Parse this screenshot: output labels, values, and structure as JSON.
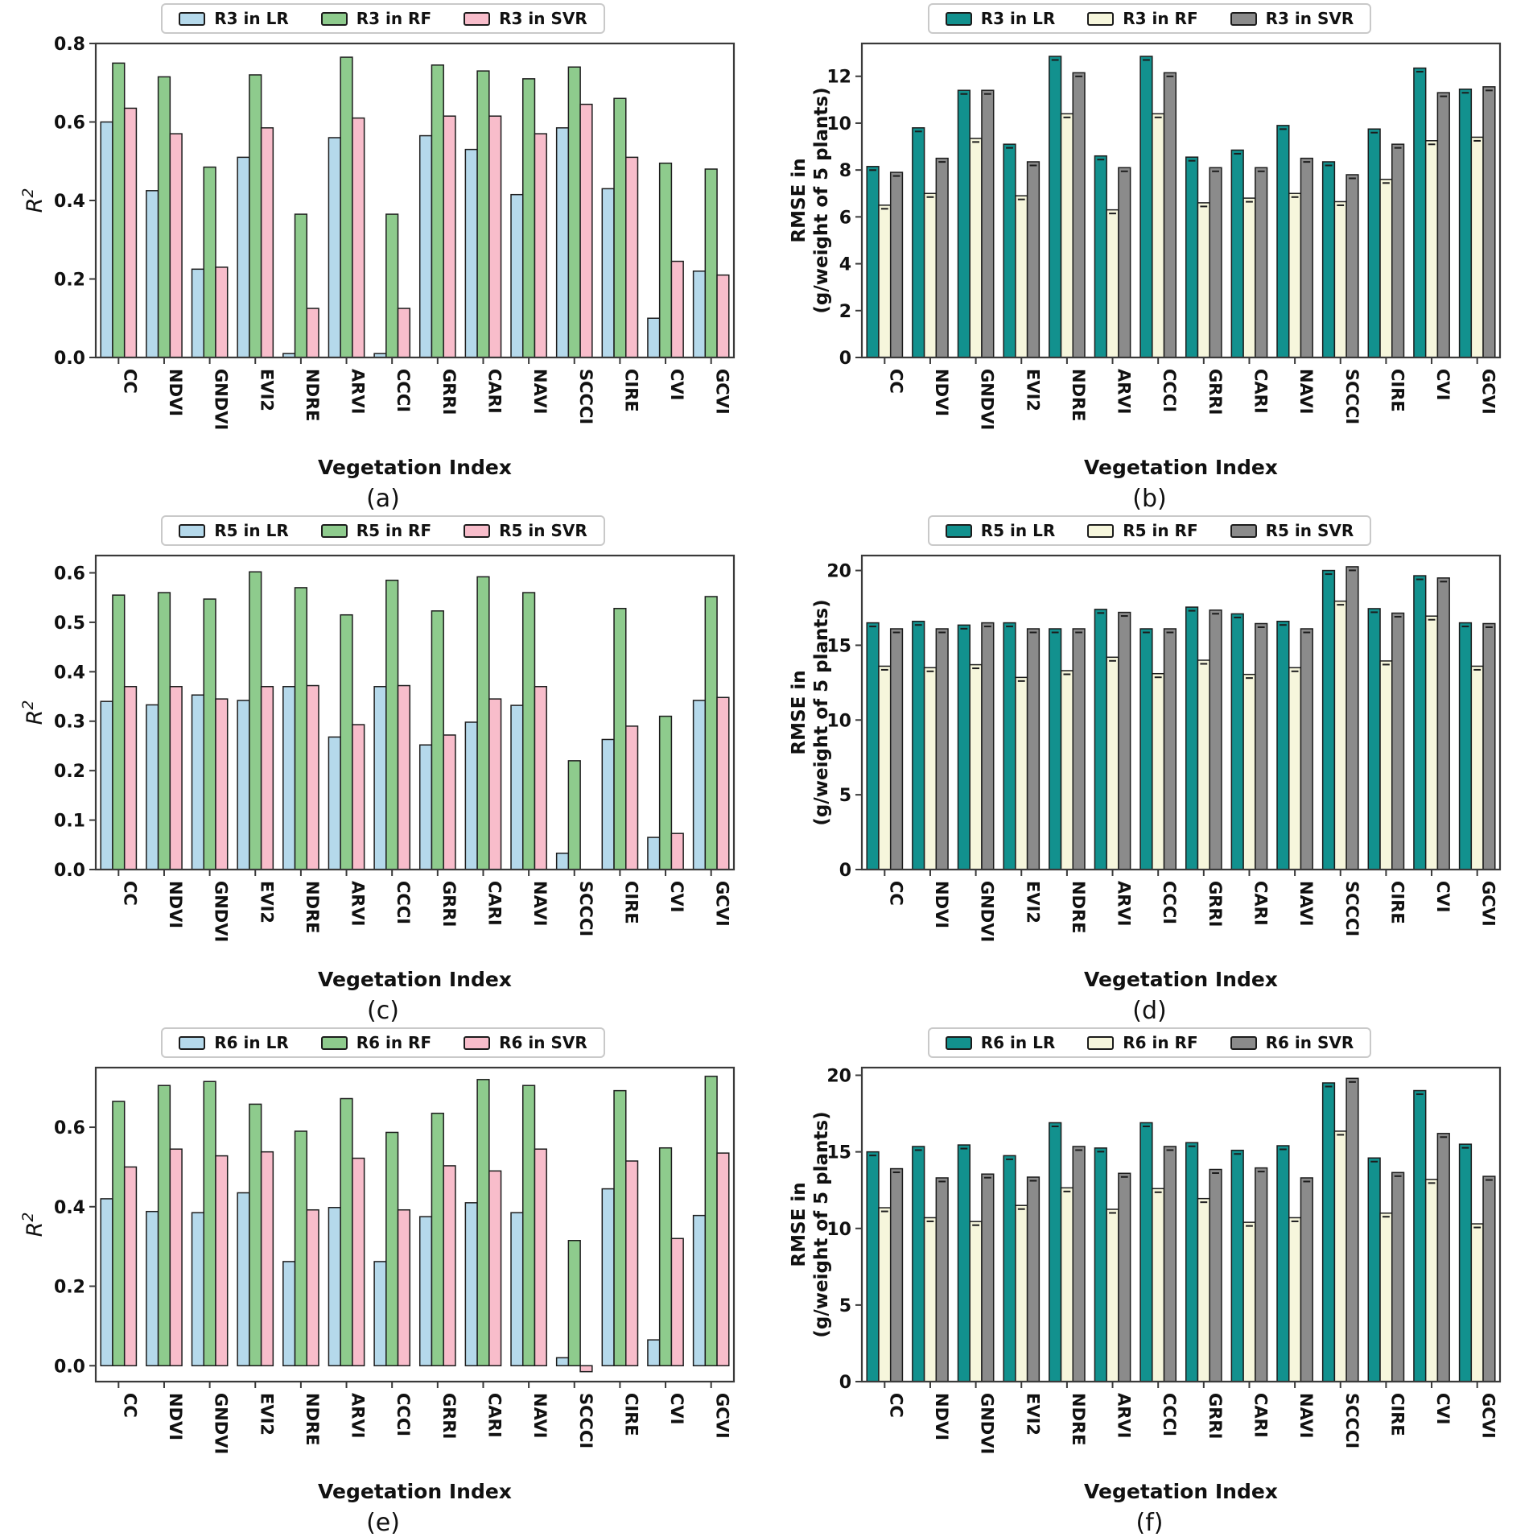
{
  "figure": {
    "xlabel": "Vegetation Index",
    "categories": [
      "CC",
      "NDVI",
      "GNDVI",
      "EVI2",
      "NDRE",
      "ARVI",
      "CCCI",
      "GRRI",
      "CARI",
      "NAVI",
      "SCCCI",
      "CIRE",
      "CVI",
      "GCVI"
    ],
    "r2_ylabel": {
      "base": "R",
      "sup": "2"
    },
    "rmse_ylabel_lines": [
      "RMSE in",
      "(g/weight of 5 plants)"
    ]
  },
  "colors": {
    "edge": "#1c1c1c",
    "spine": "#3a3a3a",
    "r2": {
      "lr": "#b5d9eb",
      "rf": "#8ecb8d",
      "svr": "#f8bdcb"
    },
    "rmse": {
      "lr": "#12918e",
      "rf": "#f6f6dc",
      "svr": "#8b8b8b"
    }
  },
  "chart_data": [
    {
      "id": "a",
      "caption": "(a)",
      "type": "bar",
      "kind": "r2",
      "title": "",
      "xlabel": "Vegetation Index",
      "ylabel": "R2",
      "ylim": [
        0,
        0.8
      ],
      "yticks": {
        "values": [
          0.0,
          0.2,
          0.4,
          0.6,
          0.8
        ],
        "labels": [
          "0.0",
          "0.2",
          "0.4",
          "0.6",
          "0.8"
        ]
      },
      "legend_position": "top",
      "categories": [
        "CC",
        "NDVI",
        "GNDVI",
        "EVI2",
        "NDRE",
        "ARVI",
        "CCCI",
        "GRRI",
        "CARI",
        "NAVI",
        "SCCCI",
        "CIRE",
        "CVI",
        "GCVI"
      ],
      "series": [
        {
          "name": "R3 in LR",
          "key": "lr",
          "values": [
            0.6,
            0.425,
            0.225,
            0.51,
            0.01,
            0.56,
            0.01,
            0.565,
            0.53,
            0.415,
            0.585,
            0.43,
            0.1,
            0.22
          ]
        },
        {
          "name": "R3 in RF",
          "key": "rf",
          "values": [
            0.75,
            0.715,
            0.485,
            0.72,
            0.365,
            0.765,
            0.365,
            0.745,
            0.73,
            0.71,
            0.74,
            0.66,
            0.495,
            0.48
          ]
        },
        {
          "name": "R3 in SVR",
          "key": "svr",
          "values": [
            0.635,
            0.57,
            0.23,
            0.585,
            0.125,
            0.61,
            0.125,
            0.615,
            0.615,
            0.57,
            0.645,
            0.51,
            0.245,
            0.21
          ]
        }
      ]
    },
    {
      "id": "b",
      "caption": "(b)",
      "type": "bar",
      "kind": "rmse",
      "title": "",
      "xlabel": "Vegetation Index",
      "ylabel": "RMSE in (g/weight of 5 plants)",
      "ylim": [
        0,
        13.4
      ],
      "yticks": {
        "values": [
          0,
          2,
          4,
          6,
          8,
          10,
          12
        ],
        "labels": [
          "0",
          "2",
          "4",
          "6",
          "8",
          "10",
          "12"
        ]
      },
      "legend_position": "top",
      "categories": [
        "CC",
        "NDVI",
        "GNDVI",
        "EVI2",
        "NDRE",
        "ARVI",
        "CCCI",
        "GRRI",
        "CARI",
        "NAVI",
        "SCCCI",
        "CIRE",
        "CVI",
        "GCVI"
      ],
      "series": [
        {
          "name": "R3 in LR",
          "key": "lr",
          "values": [
            8.15,
            9.8,
            11.4,
            9.1,
            12.85,
            8.6,
            12.85,
            8.55,
            8.85,
            9.9,
            8.35,
            9.75,
            12.35,
            11.45
          ]
        },
        {
          "name": "R3 in RF",
          "key": "rf",
          "values": [
            6.5,
            7.0,
            9.35,
            6.9,
            10.4,
            6.3,
            10.4,
            6.6,
            6.8,
            7.0,
            6.65,
            7.6,
            9.25,
            9.4
          ]
        },
        {
          "name": "R3 in SVR",
          "key": "svr",
          "values": [
            7.9,
            8.5,
            11.4,
            8.35,
            12.15,
            8.1,
            12.15,
            8.1,
            8.1,
            8.5,
            7.8,
            9.1,
            11.3,
            11.55
          ]
        }
      ]
    },
    {
      "id": "c",
      "caption": "(c)",
      "type": "bar",
      "kind": "r2",
      "title": "",
      "xlabel": "Vegetation Index",
      "ylabel": "R2",
      "ylim": [
        0,
        0.635
      ],
      "yticks": {
        "values": [
          0.0,
          0.1,
          0.2,
          0.3,
          0.4,
          0.5,
          0.6
        ],
        "labels": [
          "0.0",
          "0.1",
          "0.2",
          "0.3",
          "0.4",
          "0.5",
          "0.6"
        ]
      },
      "legend_position": "top",
      "categories": [
        "CC",
        "NDVI",
        "GNDVI",
        "EVI2",
        "NDRE",
        "ARVI",
        "CCCI",
        "GRRI",
        "CARI",
        "NAVI",
        "SCCCI",
        "CIRE",
        "CVI",
        "GCVI"
      ],
      "series": [
        {
          "name": "R5 in LR",
          "key": "lr",
          "values": [
            0.34,
            0.333,
            0.353,
            0.342,
            0.37,
            0.268,
            0.37,
            0.252,
            0.298,
            0.332,
            0.033,
            0.263,
            0.065,
            0.342
          ]
        },
        {
          "name": "R5 in RF",
          "key": "rf",
          "values": [
            0.555,
            0.56,
            0.547,
            0.602,
            0.57,
            0.515,
            0.585,
            0.523,
            0.592,
            0.56,
            0.22,
            0.528,
            0.31,
            0.552
          ]
        },
        {
          "name": "R5 in SVR",
          "key": "svr",
          "values": [
            0.37,
            0.37,
            0.345,
            0.37,
            0.372,
            0.293,
            0.372,
            0.272,
            0.345,
            0.37,
            0,
            0.29,
            0.073,
            0.348
          ]
        }
      ]
    },
    {
      "id": "d",
      "caption": "(d)",
      "type": "bar",
      "kind": "rmse",
      "title": "",
      "xlabel": "Vegetation Index",
      "ylabel": "RMSE in (g/weight of 5 plants)",
      "ylim": [
        0,
        21
      ],
      "yticks": {
        "values": [
          0,
          5,
          10,
          15,
          20
        ],
        "labels": [
          "0",
          "5",
          "10",
          "15",
          "20"
        ]
      },
      "legend_position": "top",
      "categories": [
        "CC",
        "NDVI",
        "GNDVI",
        "EVI2",
        "NDRE",
        "ARVI",
        "CCCI",
        "GRRI",
        "CARI",
        "NAVI",
        "SCCCI",
        "CIRE",
        "CVI",
        "GCVI"
      ],
      "series": [
        {
          "name": "R5 in LR",
          "key": "lr",
          "values": [
            16.5,
            16.6,
            16.35,
            16.5,
            16.1,
            17.4,
            16.1,
            17.55,
            17.1,
            16.6,
            20.0,
            17.45,
            19.65,
            16.5
          ]
        },
        {
          "name": "R5 in RF",
          "key": "rf",
          "values": [
            13.6,
            13.5,
            13.7,
            12.85,
            13.3,
            14.2,
            13.1,
            14.0,
            13.05,
            13.5,
            17.95,
            13.95,
            16.95,
            13.6
          ]
        },
        {
          "name": "R5 in SVR",
          "key": "svr",
          "values": [
            16.1,
            16.1,
            16.5,
            16.1,
            16.1,
            17.2,
            16.1,
            17.35,
            16.45,
            16.1,
            20.25,
            17.15,
            19.5,
            16.45
          ]
        }
      ]
    },
    {
      "id": "e",
      "caption": "(e)",
      "type": "bar",
      "kind": "r2",
      "title": "",
      "xlabel": "Vegetation Index",
      "ylabel": "R2",
      "ylim": [
        -0.04,
        0.75
      ],
      "yticks": {
        "values": [
          0.0,
          0.2,
          0.4,
          0.6
        ],
        "labels": [
          "0.0",
          "0.2",
          "0.4",
          "0.6"
        ]
      },
      "legend_position": "top",
      "categories": [
        "CC",
        "NDVI",
        "GNDVI",
        "EVI2",
        "NDRE",
        "ARVI",
        "CCCI",
        "GRRI",
        "CARI",
        "NAVI",
        "SCCCI",
        "CIRE",
        "CVI",
        "GCVI"
      ],
      "series": [
        {
          "name": "R6 in LR",
          "key": "lr",
          "values": [
            0.42,
            0.388,
            0.385,
            0.435,
            0.262,
            0.398,
            0.262,
            0.375,
            0.41,
            0.385,
            0.02,
            0.445,
            0.065,
            0.378
          ]
        },
        {
          "name": "R6 in RF",
          "key": "rf",
          "values": [
            0.665,
            0.705,
            0.715,
            0.658,
            0.59,
            0.672,
            0.587,
            0.635,
            0.72,
            0.705,
            0.315,
            0.692,
            0.548,
            0.728
          ]
        },
        {
          "name": "R6 in SVR",
          "key": "svr",
          "values": [
            0.5,
            0.545,
            0.528,
            0.538,
            0.392,
            0.522,
            0.392,
            0.503,
            0.49,
            0.545,
            -0.015,
            0.515,
            0.32,
            0.535
          ]
        }
      ]
    },
    {
      "id": "f",
      "caption": "(f)",
      "type": "bar",
      "kind": "rmse",
      "title": "",
      "xlabel": "Vegetation Index",
      "ylabel": "RMSE in (g/weight of 5 plants)",
      "ylim": [
        0,
        20.5
      ],
      "yticks": {
        "values": [
          0,
          5,
          10,
          15,
          20
        ],
        "labels": [
          "0",
          "5",
          "10",
          "15",
          "20"
        ]
      },
      "legend_position": "top",
      "categories": [
        "CC",
        "NDVI",
        "GNDVI",
        "EVI2",
        "NDRE",
        "ARVI",
        "CCCI",
        "GRRI",
        "CARI",
        "NAVI",
        "SCCCI",
        "CIRE",
        "CVI",
        "GCVI"
      ],
      "series": [
        {
          "name": "R6 in LR",
          "key": "lr",
          "values": [
            15.0,
            15.35,
            15.45,
            14.75,
            16.9,
            15.25,
            16.9,
            15.6,
            15.1,
            15.4,
            19.5,
            14.6,
            19.0,
            15.5
          ]
        },
        {
          "name": "R6 in RF",
          "key": "rf",
          "values": [
            11.35,
            10.7,
            10.45,
            11.5,
            12.65,
            11.25,
            12.6,
            11.95,
            10.4,
            10.7,
            16.35,
            11.0,
            13.2,
            10.3
          ]
        },
        {
          "name": "R6 in SVR",
          "key": "svr",
          "values": [
            13.9,
            13.3,
            13.55,
            13.35,
            15.35,
            13.6,
            15.35,
            13.85,
            13.95,
            13.3,
            19.8,
            13.65,
            16.2,
            13.4
          ]
        }
      ]
    }
  ]
}
